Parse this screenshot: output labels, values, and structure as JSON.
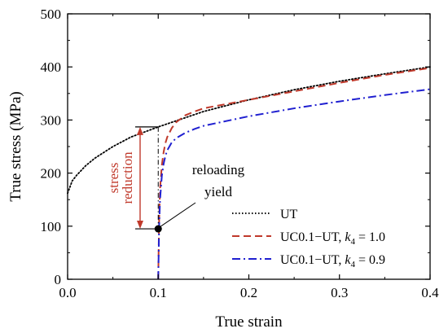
{
  "chart_data": {
    "type": "line",
    "xlabel": "True strain",
    "ylabel": "True stress (MPa)",
    "xlim": [
      0.0,
      0.4
    ],
    "ylim": [
      0,
      500
    ],
    "xticks": [
      "0.0",
      "0.1",
      "0.2",
      "0.3",
      "0.4"
    ],
    "yticks": [
      "0",
      "100",
      "200",
      "300",
      "400",
      "500"
    ],
    "grid": false,
    "legend_position": "bottom-right",
    "series": [
      {
        "name": "UT",
        "color": "#000000",
        "dash": "dotted",
        "x": [
          0.0,
          0.005,
          0.01,
          0.02,
          0.03,
          0.05,
          0.07,
          0.1,
          0.15,
          0.2,
          0.25,
          0.3,
          0.35,
          0.4
        ],
        "y": [
          162,
          185,
          196,
          214,
          228,
          250,
          268,
          287,
          316,
          338,
          357,
          373,
          387,
          400
        ]
      },
      {
        "name": "UC0.1−UT, k4 = 1.0",
        "label_main": "UC0.1−UT, ",
        "label_k": "k",
        "label_sub": "4",
        "label_rest": " = 1.0",
        "color": "#c0392b",
        "dash": "dashed",
        "x": [
          0.1,
          0.1005,
          0.101,
          0.102,
          0.104,
          0.106,
          0.108,
          0.11,
          0.115,
          0.12,
          0.13,
          0.14,
          0.15,
          0.2,
          0.25,
          0.3,
          0.35,
          0.4
        ],
        "y": [
          0,
          60,
          110,
          170,
          215,
          240,
          257,
          268,
          285,
          296,
          309,
          316,
          322,
          338,
          354,
          370,
          385,
          398
        ]
      },
      {
        "name": "UC0.1−UT, k4 = 0.9",
        "label_main": "UC0.1−UT, ",
        "label_k": "k",
        "label_sub": "4",
        "label_rest": " = 0.9",
        "color": "#2020d0",
        "dash": "dashdot",
        "x": [
          0.1,
          0.1005,
          0.101,
          0.102,
          0.104,
          0.106,
          0.108,
          0.11,
          0.115,
          0.12,
          0.13,
          0.14,
          0.15,
          0.2,
          0.25,
          0.3,
          0.35,
          0.4
        ],
        "y": [
          0,
          50,
          100,
          150,
          195,
          218,
          233,
          243,
          258,
          266,
          276,
          283,
          289,
          307,
          322,
          335,
          347,
          358
        ]
      }
    ],
    "annotations": {
      "reloading_yield": {
        "line1": "reloading",
        "line2": "yield",
        "x": 0.1,
        "y": 95
      },
      "stress_reduction": {
        "line1": "stress",
        "line2": "reduction",
        "color": "#c0392b",
        "from_y": 287,
        "to_y": 95,
        "x": 0.08
      }
    }
  }
}
